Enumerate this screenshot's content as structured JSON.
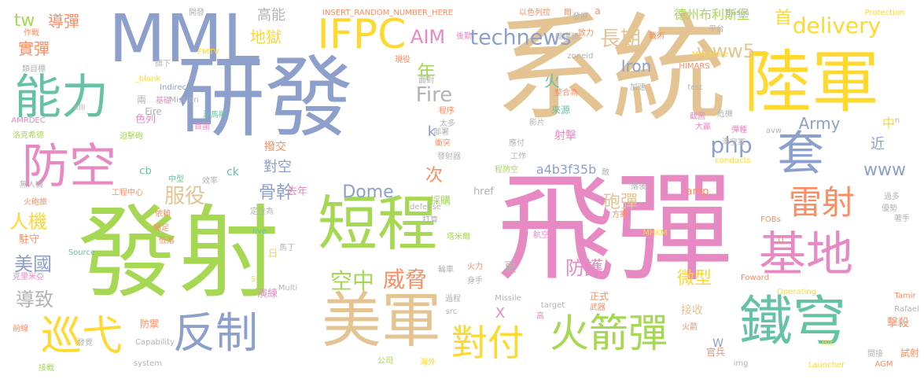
{
  "colors": {
    "pink": "#e78ac3",
    "tan": "#e5c494",
    "blue": "#8da0cb",
    "green": "#a6d854",
    "yellow": "#ffd92f",
    "orange": "#fc8d62",
    "teal": "#66c2a5",
    "gray": "#b3b3b3"
  },
  "words": [
    {
      "text": "系統",
      "color": "tan"
    },
    {
      "text": "飛彈",
      "color": "pink"
    },
    {
      "text": "發射",
      "color": "green"
    },
    {
      "text": "研發",
      "color": "blue"
    },
    {
      "text": "MML",
      "color": "blue"
    },
    {
      "text": "陸軍",
      "color": "yellow"
    },
    {
      "text": "美軍",
      "color": "tan"
    },
    {
      "text": "短程",
      "color": "green"
    },
    {
      "text": "鐵穹",
      "color": "teal"
    },
    {
      "text": "IFPC",
      "color": "yellow"
    },
    {
      "text": "能力",
      "color": "teal"
    },
    {
      "text": "防空",
      "color": "pink"
    },
    {
      "text": "基地",
      "color": "pink"
    },
    {
      "text": "套",
      "color": "blue"
    },
    {
      "text": "反制",
      "color": "blue"
    },
    {
      "text": "火箭彈",
      "color": "green"
    },
    {
      "text": "對付",
      "color": "yellow"
    },
    {
      "text": "巡弋",
      "color": "yellow"
    },
    {
      "text": "雷射",
      "color": "orange"
    },
    {
      "text": "technews",
      "color": "blue"
    },
    {
      "text": "delivery",
      "color": "yellow"
    },
    {
      "text": "威脅",
      "color": "orange"
    },
    {
      "text": "空中",
      "color": "green"
    },
    {
      "text": "Fire",
      "color": "gray"
    },
    {
      "text": "長期",
      "color": "tan"
    },
    {
      "text": "www5",
      "color": "tan"
    },
    {
      "text": "php",
      "color": "blue"
    },
    {
      "text": "AIM",
      "color": "pink"
    },
    {
      "text": "服役",
      "color": "tan"
    },
    {
      "text": "骨幹",
      "color": "blue"
    },
    {
      "text": "人機",
      "color": "yellow"
    },
    {
      "text": "美國",
      "color": "blue"
    },
    {
      "text": "導致",
      "color": "gray"
    },
    {
      "text": "Dome",
      "color": "blue"
    },
    {
      "text": "防護",
      "color": "pink"
    },
    {
      "text": "微型",
      "color": "yellow"
    },
    {
      "text": "砲彈",
      "color": "tan"
    },
    {
      "text": "www",
      "color": "blue"
    },
    {
      "text": "Army",
      "color": "blue"
    },
    {
      "text": "首",
      "color": "yellow"
    },
    {
      "text": "實彈",
      "color": "orange"
    },
    {
      "text": "地獄",
      "color": "yellow"
    },
    {
      "text": "高能",
      "color": "gray"
    },
    {
      "text": "tw",
      "color": "green"
    },
    {
      "text": "導彈",
      "color": "orange"
    },
    {
      "text": "Iron",
      "color": "blue"
    },
    {
      "text": "年",
      "color": "green"
    },
    {
      "text": "火",
      "color": "teal"
    },
    {
      "text": "對空",
      "color": "blue"
    },
    {
      "text": "次",
      "color": "orange"
    },
    {
      "text": "k",
      "color": "blue"
    },
    {
      "text": "近",
      "color": "blue"
    },
    {
      "text": "中",
      "color": "yellow"
    },
    {
      "text": "德州布利斯堡",
      "color": "green"
    },
    {
      "text": "a4b3f35b",
      "color": "blue"
    },
    {
      "text": "射擊",
      "color": "pink"
    },
    {
      "text": "撥交",
      "color": "orange"
    },
    {
      "text": "色列",
      "color": "pink"
    },
    {
      "text": "採購",
      "color": "green"
    },
    {
      "text": "更",
      "color": "gray"
    },
    {
      "text": "X",
      "color": "pink"
    },
    {
      "text": "接收",
      "color": "tan"
    },
    {
      "text": "擊殺",
      "color": "orange"
    },
    {
      "text": "演練",
      "color": "pink"
    },
    {
      "text": "去年",
      "color": "pink"
    },
    {
      "text": "ck",
      "color": "teal"
    },
    {
      "text": "cb",
      "color": "teal"
    },
    {
      "text": "駐守",
      "color": "orange"
    },
    {
      "text": "正式",
      "color": "orange"
    },
    {
      "text": "試射",
      "color": "orange"
    },
    {
      "text": "官兵",
      "color": "orange"
    },
    {
      "text": "W",
      "color": "blue"
    },
    {
      "text": "防禦",
      "color": "orange"
    },
    {
      "text": "href",
      "color": "gray"
    },
    {
      "text": "amp",
      "color": "orange"
    },
    {
      "text": "Fire",
      "color": "gray"
    },
    {
      "text": "兩",
      "color": "gray"
    },
    {
      "text": "來源",
      "color": "teal"
    },
    {
      "text": "作戰",
      "color": "orange"
    },
    {
      "text": "開發",
      "color": "gray"
    },
    {
      "text": "INSERT_RANDOM_NUMBER_HERE",
      "color": "orange"
    },
    {
      "text": "以色列拉",
      "color": "orange"
    },
    {
      "text": "爾",
      "color": "orange"
    },
    {
      "text": "發展",
      "color": "gray"
    },
    {
      "text": "a",
      "color": "orange"
    },
    {
      "text": "Bases",
      "color": "gray"
    },
    {
      "text": "Protection",
      "color": "yellow"
    },
    {
      "text": "後勤",
      "color": "pink"
    },
    {
      "text": "FMTV",
      "color": "yellow"
    },
    {
      "text": "旗下",
      "color": "gray"
    },
    {
      "text": "現役",
      "color": "orange"
    },
    {
      "text": "zoneid",
      "color": "gray"
    },
    {
      "text": "HIMARS",
      "color": "orange"
    },
    {
      "text": "Miniature",
      "color": "yellow"
    },
    {
      "text": "類目標",
      "color": "gray"
    },
    {
      "text": "_blank",
      "color": "yellow"
    },
    {
      "text": "Indirect",
      "color": "blue"
    },
    {
      "text": "Mission",
      "color": "gray"
    },
    {
      "text": "面對",
      "color": "gray"
    },
    {
      "text": "整合為",
      "color": "orange"
    },
    {
      "text": "test",
      "color": "gray"
    },
    {
      "text": "加速",
      "color": "gray"
    },
    {
      "text": "基礎",
      "color": "pink"
    },
    {
      "text": "海馬斯",
      "color": "teal"
    },
    {
      "text": "程序",
      "color": "orange"
    },
    {
      "text": "太多",
      "color": "gray"
    },
    {
      "text": "部署",
      "color": "gray"
    },
    {
      "text": "影片",
      "color": "gray"
    },
    {
      "text": "AMRDEC",
      "color": "pink"
    },
    {
      "text": "洛克希德",
      "color": "green"
    },
    {
      "text": "迫擊砲",
      "color": "green"
    },
    {
      "text": "首圍",
      "color": "pink"
    },
    {
      "text": "衝突",
      "color": "orange"
    },
    {
      "text": "發射器",
      "color": "gray"
    },
    {
      "text": "應付",
      "color": "gray"
    },
    {
      "text": "工作",
      "color": "gray"
    },
    {
      "text": "效率",
      "color": "gray"
    },
    {
      "text": "中型",
      "color": "teal"
    },
    {
      "text": "無人機",
      "color": "gray"
    },
    {
      "text": "工程中心",
      "color": "orange"
    },
    {
      "text": "火砲旅",
      "color": "orange"
    },
    {
      "text": "定位為",
      "color": "gray"
    },
    {
      "text": "live",
      "color": "teal"
    },
    {
      "text": "依賴",
      "color": "orange"
    },
    {
      "text": "defense",
      "color": "gray"
    },
    {
      "text": "打算",
      "color": "gray"
    },
    {
      "text": "補足",
      "color": "orange"
    },
    {
      "text": "塔米爾",
      "color": "green"
    },
    {
      "text": "航空",
      "color": "pink"
    },
    {
      "text": "方案",
      "color": "orange"
    },
    {
      "text": "FOBs",
      "color": "orange"
    },
    {
      "text": "低落",
      "color": "orange"
    },
    {
      "text": "Source",
      "color": "teal"
    },
    {
      "text": "馬丁",
      "color": "gray"
    },
    {
      "text": "MHKM",
      "color": "yellow"
    },
    {
      "text": "克里米亞",
      "color": "pink"
    },
    {
      "text": "日",
      "color": "yellow"
    },
    {
      "text": "輪車",
      "color": "gray"
    },
    {
      "text": "火力",
      "color": "orange"
    },
    {
      "text": "身手",
      "color": "gray"
    },
    {
      "text": "Foward",
      "color": "orange"
    },
    {
      "text": "Multi",
      "color": "gray"
    },
    {
      "text": "過程",
      "color": "gray"
    },
    {
      "text": "Missile",
      "color": "gray"
    },
    {
      "text": "target",
      "color": "gray"
    },
    {
      "text": "Tamir",
      "color": "orange"
    },
    {
      "text": "前線",
      "color": "orange"
    },
    {
      "text": "src",
      "color": "gray"
    },
    {
      "text": "武器",
      "color": "orange"
    },
    {
      "text": "高",
      "color": "pink"
    },
    {
      "text": "Operating",
      "color": "yellow"
    },
    {
      "text": "Rafael",
      "color": "gray"
    },
    {
      "text": "發覺",
      "color": "gray"
    },
    {
      "text": "Capability",
      "color": "gray"
    },
    {
      "text": "火箭",
      "color": "orange"
    },
    {
      "text": "Hit",
      "color": "yellow"
    },
    {
      "text": "接戰",
      "color": "green"
    },
    {
      "text": "system",
      "color": "gray"
    },
    {
      "text": "公司",
      "color": "green"
    },
    {
      "text": "海外",
      "color": "yellow"
    },
    {
      "text": "img",
      "color": "gray"
    },
    {
      "text": "Launcher",
      "color": "yellow"
    },
    {
      "text": "AGM",
      "color": "orange"
    },
    {
      "text": "間接",
      "color": "gray"
    },
    {
      "text": "conducts",
      "color": "yellow"
    },
    {
      "text": "落後",
      "color": "gray"
    },
    {
      "text": "Kill",
      "color": "gray"
    },
    {
      "text": "戰術",
      "color": "orange"
    },
    {
      "text": "危機",
      "color": "gray"
    },
    {
      "text": "致力",
      "color": "orange"
    },
    {
      "text": "極彈頭",
      "color": "gray"
    },
    {
      "text": "平台",
      "color": "gray"
    },
    {
      "text": "截圖",
      "color": "pink"
    },
    {
      "text": "大贏",
      "color": "pink"
    },
    {
      "text": "彈種",
      "color": "pink"
    },
    {
      "text": "海空軍",
      "color": "gray"
    },
    {
      "text": "avw",
      "color": "gray"
    },
    {
      "text": "n",
      "color": "gray"
    },
    {
      "text": "過多",
      "color": "gray"
    },
    {
      "text": "優勢",
      "color": "gray"
    },
    {
      "text": "著手",
      "color": "gray"
    },
    {
      "text": "U",
      "color": "orange"
    },
    {
      "text": "程防空",
      "color": "green"
    },
    {
      "text": "敵",
      "color": "gray"
    },
    {
      "text": "S",
      "color": "yellow"
    }
  ]
}
